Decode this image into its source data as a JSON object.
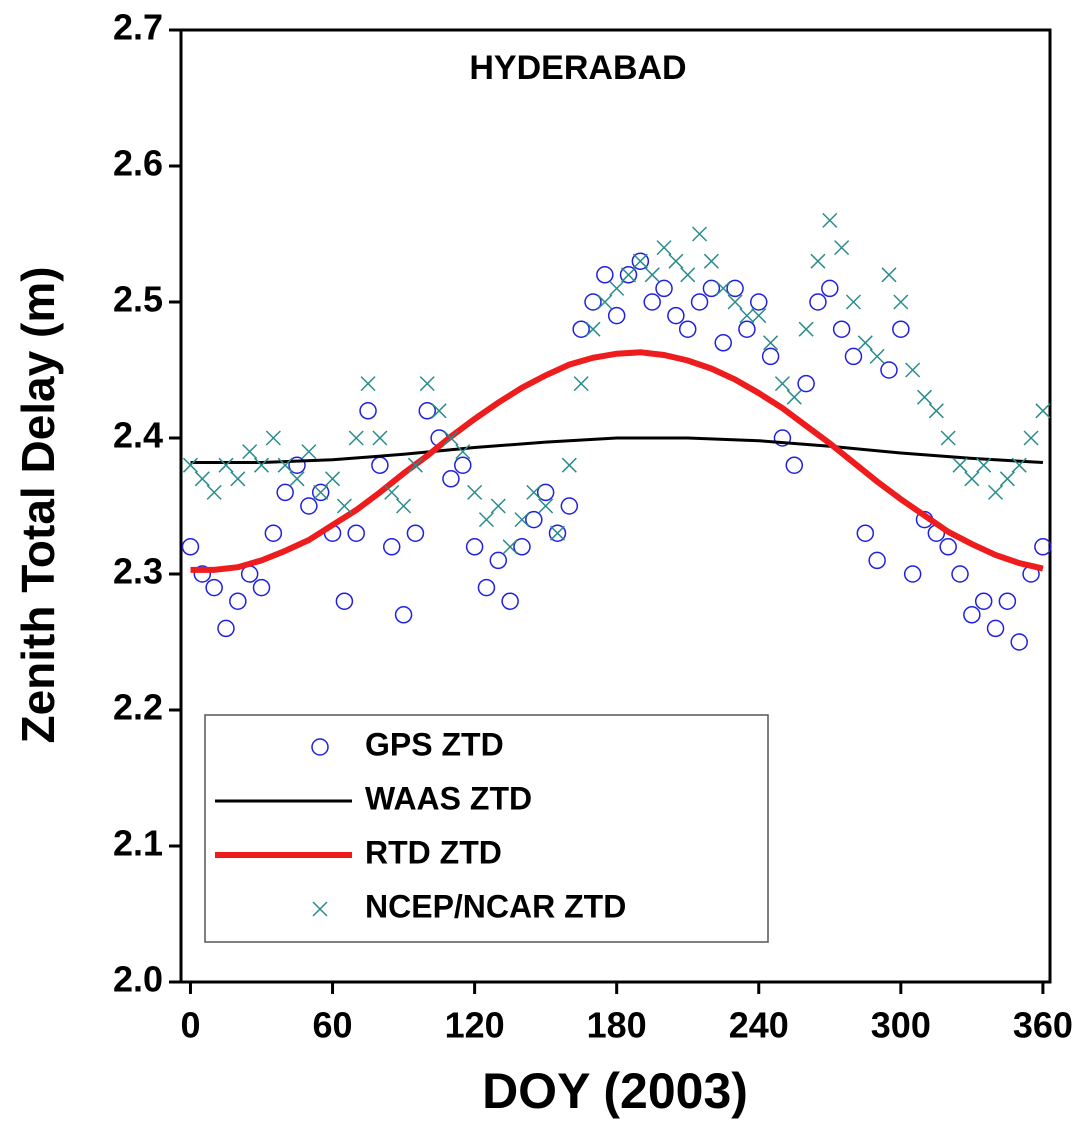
{
  "chart_data": {
    "type": "scatter",
    "title": "HYDERABAD",
    "x_label": "DOY (2003)",
    "y_label": "Zenith Total Delay (m)",
    "xlim": [
      -4,
      363
    ],
    "ylim": [
      2.0,
      2.7
    ],
    "xticks": [
      0,
      60,
      120,
      180,
      240,
      300,
      360
    ],
    "yticks": [
      {
        "value": 2.0,
        "label": "2.0"
      },
      2.1,
      2.2,
      2.3,
      2.4,
      2.5,
      2.6,
      2.7
    ],
    "legend": "lower left",
    "series": [
      {
        "name": "GPS ZTD",
        "color": "#2020e0",
        "mode": "markers",
        "marker": "circle",
        "x": [
          0,
          5,
          10,
          15,
          20,
          25,
          30,
          35,
          40,
          45,
          50,
          55,
          60,
          65,
          70,
          75,
          80,
          85,
          90,
          95,
          100,
          105,
          110,
          115,
          120,
          125,
          130,
          135,
          140,
          145,
          150,
          155,
          160,
          165,
          170,
          175,
          180,
          185,
          190,
          195,
          200,
          205,
          210,
          215,
          220,
          225,
          230,
          235,
          240,
          245,
          250,
          255,
          260,
          265,
          270,
          275,
          280,
          285,
          290,
          295,
          300,
          305,
          310,
          315,
          320,
          325,
          330,
          335,
          340,
          345,
          350,
          355,
          360
        ],
        "values": [
          2.32,
          2.3,
          2.29,
          2.26,
          2.28,
          2.3,
          2.29,
          2.33,
          2.36,
          2.38,
          2.35,
          2.36,
          2.33,
          2.28,
          2.33,
          2.42,
          2.38,
          2.32,
          2.27,
          2.33,
          2.42,
          2.4,
          2.37,
          2.38,
          2.32,
          2.29,
          2.31,
          2.28,
          2.32,
          2.34,
          2.36,
          2.33,
          2.35,
          2.48,
          2.5,
          2.52,
          2.49,
          2.52,
          2.53,
          2.5,
          2.51,
          2.49,
          2.48,
          2.5,
          2.51,
          2.47,
          2.51,
          2.48,
          2.5,
          2.46,
          2.4,
          2.38,
          2.44,
          2.5,
          2.51,
          2.48,
          2.46,
          2.33,
          2.31,
          2.45,
          2.48,
          2.3,
          2.34,
          2.33,
          2.32,
          2.3,
          2.27,
          2.28,
          2.26,
          2.28,
          2.25,
          2.3,
          2.32
        ]
      },
      {
        "name": "WAAS ZTD",
        "color": "#000000",
        "mode": "line",
        "x": [
          0,
          30,
          60,
          90,
          120,
          150,
          180,
          210,
          240,
          270,
          300,
          330,
          360
        ],
        "values": [
          2.382,
          2.382,
          2.384,
          2.388,
          2.393,
          2.397,
          2.4,
          2.4,
          2.398,
          2.394,
          2.389,
          2.385,
          2.382
        ]
      },
      {
        "name": "RTD ZTD",
        "color": "#ee1c1c",
        "mode": "line",
        "x": [
          0,
          10,
          20,
          30,
          40,
          50,
          60,
          70,
          80,
          90,
          100,
          110,
          120,
          130,
          140,
          150,
          160,
          170,
          180,
          190,
          200,
          210,
          220,
          230,
          240,
          250,
          260,
          270,
          280,
          290,
          300,
          310,
          320,
          330,
          340,
          350,
          360
        ],
        "values": [
          2.303,
          2.303,
          2.305,
          2.31,
          2.317,
          2.325,
          2.336,
          2.347,
          2.36,
          2.374,
          2.387,
          2.401,
          2.414,
          2.426,
          2.437,
          2.446,
          2.454,
          2.459,
          2.462,
          2.463,
          2.461,
          2.457,
          2.451,
          2.443,
          2.433,
          2.422,
          2.409,
          2.396,
          2.382,
          2.368,
          2.355,
          2.343,
          2.331,
          2.322,
          2.314,
          2.308,
          2.304
        ]
      },
      {
        "name": "NCEP/NCAR ZTD",
        "color": "#2a8c8c",
        "mode": "markers",
        "marker": "x",
        "x": [
          0,
          5,
          10,
          15,
          20,
          25,
          30,
          35,
          40,
          45,
          50,
          55,
          60,
          65,
          70,
          75,
          80,
          85,
          90,
          95,
          100,
          105,
          110,
          115,
          120,
          125,
          130,
          135,
          140,
          145,
          150,
          155,
          160,
          165,
          170,
          175,
          180,
          185,
          190,
          195,
          200,
          205,
          210,
          215,
          220,
          225,
          230,
          235,
          240,
          245,
          250,
          255,
          260,
          265,
          270,
          275,
          280,
          285,
          290,
          295,
          300,
          305,
          310,
          315,
          320,
          325,
          330,
          335,
          340,
          345,
          350,
          355,
          360
        ],
        "values": [
          2.38,
          2.37,
          2.36,
          2.38,
          2.37,
          2.39,
          2.38,
          2.4,
          2.38,
          2.37,
          2.39,
          2.36,
          2.37,
          2.35,
          2.4,
          2.44,
          2.4,
          2.36,
          2.35,
          2.38,
          2.44,
          2.42,
          2.4,
          2.39,
          2.36,
          2.34,
          2.35,
          2.32,
          2.34,
          2.36,
          2.35,
          2.33,
          2.38,
          2.44,
          2.48,
          2.5,
          2.51,
          2.52,
          2.53,
          2.52,
          2.54,
          2.53,
          2.52,
          2.55,
          2.53,
          2.51,
          2.5,
          2.49,
          2.49,
          2.47,
          2.44,
          2.43,
          2.48,
          2.53,
          2.56,
          2.54,
          2.5,
          2.47,
          2.46,
          2.52,
          2.5,
          2.45,
          2.43,
          2.42,
          2.4,
          2.38,
          2.37,
          2.38,
          2.36,
          2.37,
          2.38,
          2.4,
          2.42
        ]
      }
    ]
  }
}
